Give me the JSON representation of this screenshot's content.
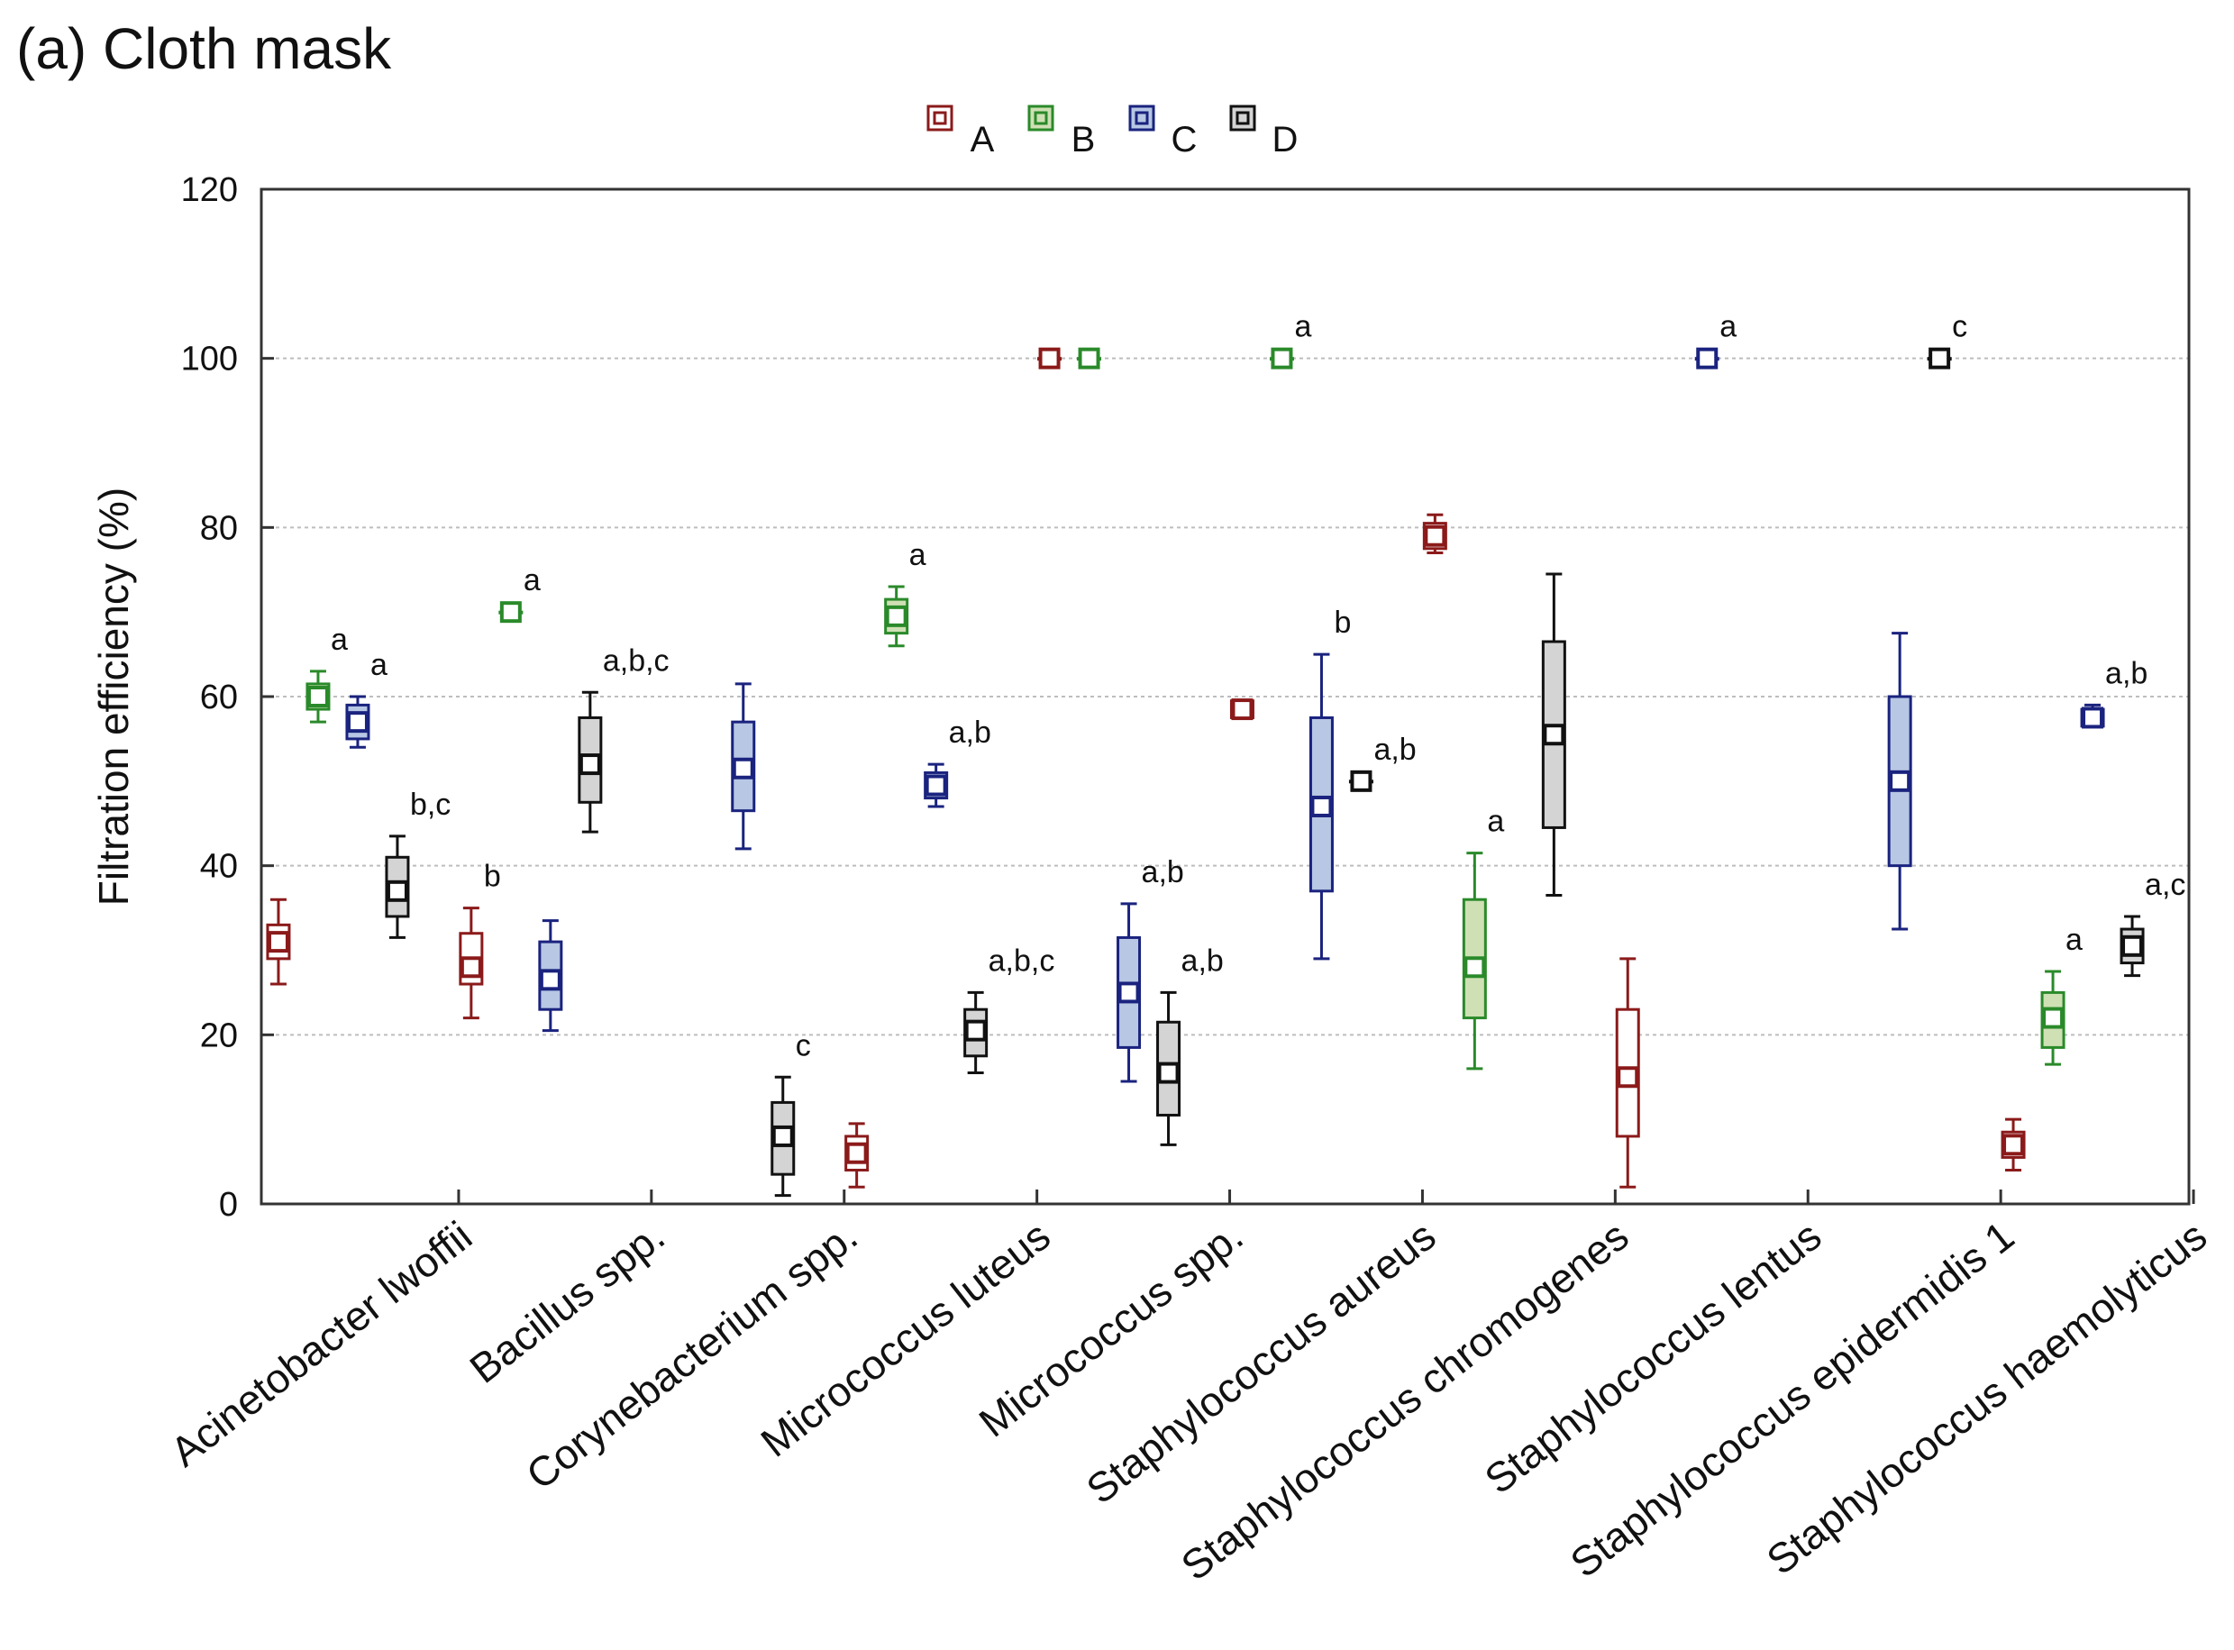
{
  "panel_title": "(a) Cloth mask",
  "chart_data": {
    "type": "box",
    "title": "(a) Cloth mask",
    "xlabel": "",
    "ylabel": "Filtration efficiency (%)",
    "ylim": [
      0,
      120
    ],
    "yticks": [
      0,
      20,
      40,
      60,
      80,
      100,
      120
    ],
    "grid": true,
    "legend_position": "top-center",
    "categories": [
      "Acinetobacter lwoffii",
      "Bacillus spp.",
      "Corynebacterium spp.",
      "Micrococcus luteus",
      "Micrococcus spp.",
      "Staphylococcus aureus",
      "Staphylococcus chromogenes",
      "Staphylococcus lentus",
      "Staphylococcus epidermidis 1",
      "Staphylococcus haemolyticus"
    ],
    "series": [
      {
        "name": "A",
        "color": "#8b1a1a",
        "fill": "#ffffff",
        "boxes": [
          {
            "cat": 0,
            "min": 26,
            "q1": 29,
            "median": 31,
            "q3": 33,
            "max": 36,
            "label": ""
          },
          {
            "cat": 1,
            "min": 22,
            "q1": 26,
            "median": 28,
            "q3": 32,
            "max": 35,
            "label": "b"
          },
          {
            "cat": 3,
            "min": 2,
            "q1": 4,
            "median": 6,
            "q3": 8,
            "max": 9.5,
            "label": ""
          },
          {
            "cat": 4,
            "min": 100,
            "q1": 100,
            "median": 100,
            "q3": 100,
            "max": 100,
            "label": ""
          },
          {
            "cat": 5,
            "min": 57.5,
            "q1": 57.5,
            "median": 58.5,
            "q3": 59.5,
            "max": 59.5,
            "label": ""
          },
          {
            "cat": 6,
            "min": 77,
            "q1": 77.5,
            "median": 79,
            "q3": 80.5,
            "max": 81.5,
            "label": ""
          },
          {
            "cat": 7,
            "min": 2,
            "q1": 8,
            "median": 15,
            "q3": 23,
            "max": 29,
            "label": ""
          },
          {
            "cat": 9,
            "min": 4,
            "q1": 5.5,
            "median": 7,
            "q3": 8.5,
            "max": 10,
            "label": ""
          }
        ]
      },
      {
        "name": "B",
        "color": "#2a8a2a",
        "fill": "#cfe0b4",
        "boxes": [
          {
            "cat": 0,
            "min": 57,
            "q1": 58.5,
            "median": 60,
            "q3": 61.5,
            "max": 63,
            "label": "a"
          },
          {
            "cat": 1,
            "min": 70,
            "q1": 70,
            "median": 70,
            "q3": 70,
            "max": 70,
            "label": "a"
          },
          {
            "cat": 3,
            "min": 66,
            "q1": 67.5,
            "median": 69.5,
            "q3": 71.5,
            "max": 73,
            "label": "a"
          },
          {
            "cat": 4,
            "min": 100,
            "q1": 100,
            "median": 100,
            "q3": 100,
            "max": 100,
            "label": ""
          },
          {
            "cat": 5,
            "min": 100,
            "q1": 100,
            "median": 100,
            "q3": 100,
            "max": 100,
            "label": "a"
          },
          {
            "cat": 6,
            "min": 16,
            "q1": 22,
            "median": 28,
            "q3": 36,
            "max": 41.5,
            "label": "a"
          },
          {
            "cat": 9,
            "min": 16.5,
            "q1": 18.5,
            "median": 22,
            "q3": 25,
            "max": 27.5,
            "label": "a"
          }
        ]
      },
      {
        "name": "C",
        "color": "#1a237e",
        "fill": "#b7c7e4",
        "boxes": [
          {
            "cat": 0,
            "min": 54,
            "q1": 55,
            "median": 57,
            "q3": 59,
            "max": 60,
            "label": "a"
          },
          {
            "cat": 1,
            "min": 20.5,
            "q1": 23,
            "median": 26.5,
            "q3": 31,
            "max": 33.5,
            "label": ""
          },
          {
            "cat": 2,
            "min": 42,
            "q1": 46.5,
            "median": 51.5,
            "q3": 57,
            "max": 61.5,
            "label": ""
          },
          {
            "cat": 3,
            "min": 47,
            "q1": 48,
            "median": 49.5,
            "q3": 51,
            "max": 52,
            "label": "a,b"
          },
          {
            "cat": 4,
            "min": 14.5,
            "q1": 18.5,
            "median": 25,
            "q3": 31.5,
            "max": 35.5,
            "label": "a,b"
          },
          {
            "cat": 5,
            "min": 29,
            "q1": 37,
            "median": 47,
            "q3": 57.5,
            "max": 65,
            "label": "b"
          },
          {
            "cat": 7,
            "min": 100,
            "q1": 100,
            "median": 100,
            "q3": 100,
            "max": 100,
            "label": "a"
          },
          {
            "cat": 8,
            "min": 32.5,
            "q1": 40,
            "median": 50,
            "q3": 60,
            "max": 67.5,
            "label": ""
          },
          {
            "cat": 9,
            "min": 56.5,
            "q1": 56.5,
            "median": 57.5,
            "q3": 58.5,
            "max": 59,
            "label": "a,b"
          }
        ]
      },
      {
        "name": "D",
        "color": "#111111",
        "fill": "#d4d4d4",
        "boxes": [
          {
            "cat": 0,
            "min": 31.5,
            "q1": 34,
            "median": 37,
            "q3": 41,
            "max": 43.5,
            "label": "b,c"
          },
          {
            "cat": 1,
            "min": 44,
            "q1": 47.5,
            "median": 52,
            "q3": 57.5,
            "max": 60.5,
            "label": "a,b,c"
          },
          {
            "cat": 2,
            "min": 1,
            "q1": 3.5,
            "median": 8,
            "q3": 12,
            "max": 15,
            "label": "c"
          },
          {
            "cat": 3,
            "min": 15.5,
            "q1": 17.5,
            "median": 20.5,
            "q3": 23,
            "max": 25,
            "label": "a,b,c"
          },
          {
            "cat": 4,
            "min": 7,
            "q1": 10.5,
            "median": 15.5,
            "q3": 21.5,
            "max": 25,
            "label": "a,b"
          },
          {
            "cat": 5,
            "min": 50,
            "q1": 50,
            "median": 50,
            "q3": 50,
            "max": 50,
            "label": "a,b"
          },
          {
            "cat": 6,
            "min": 36.5,
            "q1": 44.5,
            "median": 55.5,
            "q3": 66.5,
            "max": 74.5,
            "label": ""
          },
          {
            "cat": 8,
            "min": 100,
            "q1": 100,
            "median": 100,
            "q3": 100,
            "max": 100,
            "label": "c"
          },
          {
            "cat": 9,
            "min": 27,
            "q1": 28.5,
            "median": 30.5,
            "q3": 32.5,
            "max": 34,
            "label": "a,c"
          }
        ]
      }
    ]
  }
}
